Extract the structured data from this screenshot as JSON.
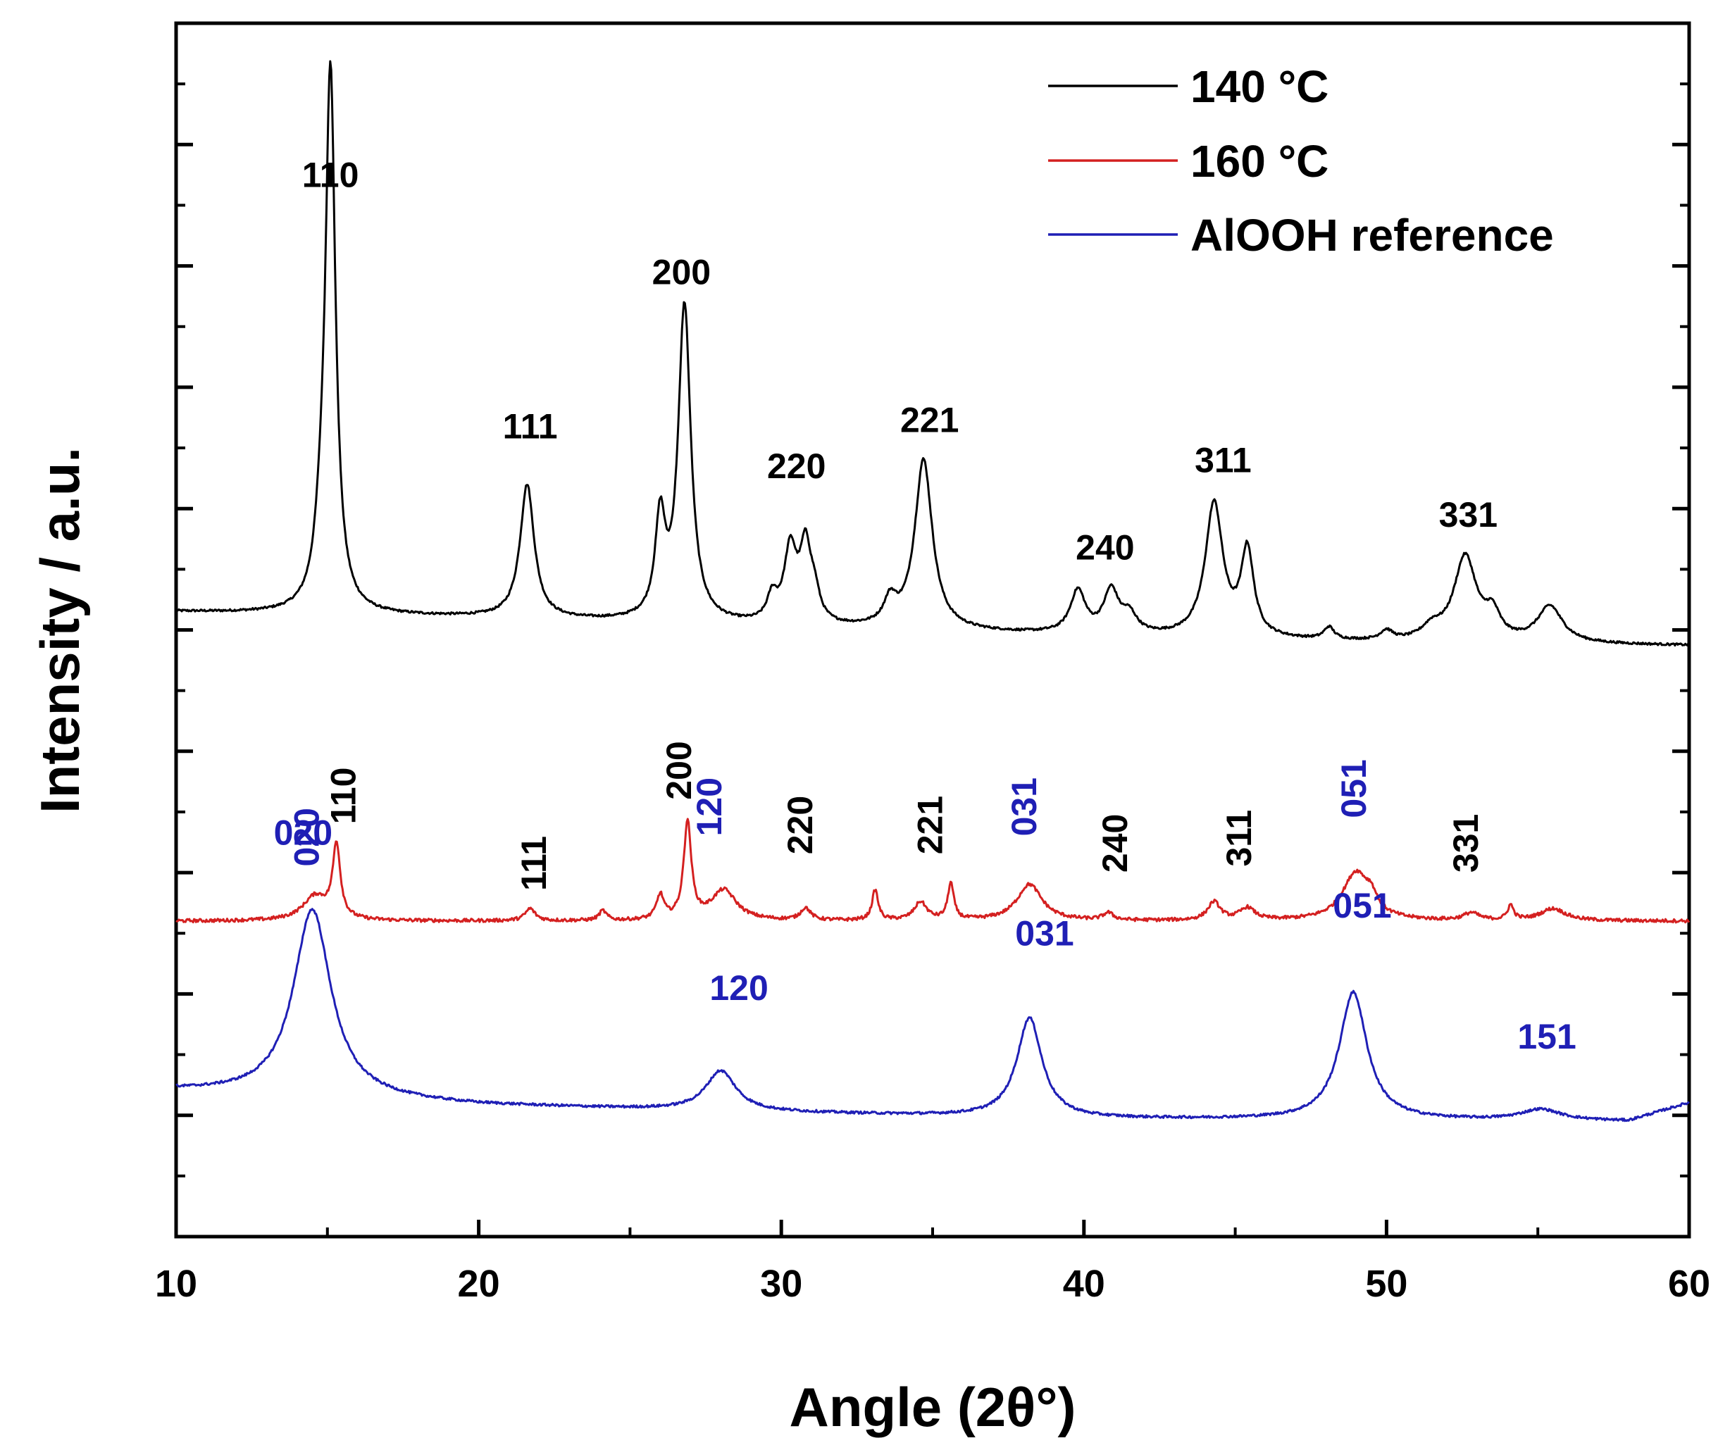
{
  "chart_data": {
    "type": "line",
    "title": "",
    "xlabel": "Angle (2θ°)",
    "ylabel": "Intensity / a.u.",
    "xlim": [
      10,
      60
    ],
    "ylim": [
      0,
      100
    ],
    "x_ticks": [
      10,
      20,
      30,
      40,
      50,
      60
    ],
    "y_ticks_labeled": false,
    "grid": false,
    "legend_position": "top-right",
    "series": [
      {
        "name": "140 °C",
        "color": "#000000",
        "baseline": [
          [
            10,
            51.5
          ],
          [
            20,
            51.0
          ],
          [
            30,
            50.2
          ],
          [
            40,
            49.5
          ],
          [
            50,
            48.9
          ],
          [
            60,
            48.7
          ]
        ],
        "peaks": [
          {
            "x": 14.8,
            "h": 4,
            "w": 0.25
          },
          {
            "x": 15.1,
            "h": 44,
            "w": 0.2
          },
          {
            "x": 21.6,
            "h": 11,
            "w": 0.28
          },
          {
            "x": 26.0,
            "h": 8,
            "w": 0.2
          },
          {
            "x": 26.8,
            "h": 26,
            "w": 0.25
          },
          {
            "x": 29.7,
            "h": 2,
            "w": 0.2
          },
          {
            "x": 30.3,
            "h": 6,
            "w": 0.25
          },
          {
            "x": 30.8,
            "h": 6,
            "w": 0.22
          },
          {
            "x": 31.1,
            "h": 2,
            "w": 0.2
          },
          {
            "x": 33.6,
            "h": 2,
            "w": 0.25
          },
          {
            "x": 34.7,
            "h": 14,
            "w": 0.35
          },
          {
            "x": 39.8,
            "h": 3.5,
            "w": 0.3
          },
          {
            "x": 40.9,
            "h": 3.5,
            "w": 0.3
          },
          {
            "x": 41.5,
            "h": 1.5,
            "w": 0.3
          },
          {
            "x": 44.3,
            "h": 11,
            "w": 0.35
          },
          {
            "x": 45.4,
            "h": 7,
            "w": 0.25
          },
          {
            "x": 48.1,
            "h": 1,
            "w": 0.2
          },
          {
            "x": 50.0,
            "h": 0.8,
            "w": 0.25
          },
          {
            "x": 51.5,
            "h": 1,
            "w": 0.4
          },
          {
            "x": 52.6,
            "h": 7,
            "w": 0.45
          },
          {
            "x": 53.5,
            "h": 2,
            "w": 0.3
          },
          {
            "x": 55.4,
            "h": 3,
            "w": 0.5
          }
        ]
      },
      {
        "name": "160 °C",
        "color": "#d42020",
        "baseline": [
          [
            10,
            26.0
          ],
          [
            60,
            26.0
          ]
        ],
        "peaks": [
          {
            "x": 14.6,
            "h": 2,
            "w": 0.5
          },
          {
            "x": 15.3,
            "h": 6,
            "w": 0.15
          },
          {
            "x": 21.7,
            "h": 1,
            "w": 0.2
          },
          {
            "x": 24.1,
            "h": 0.8,
            "w": 0.15
          },
          {
            "x": 26.0,
            "h": 2,
            "w": 0.15
          },
          {
            "x": 26.9,
            "h": 8,
            "w": 0.15
          },
          {
            "x": 28.1,
            "h": 2.5,
            "w": 0.5
          },
          {
            "x": 30.8,
            "h": 1,
            "w": 0.2
          },
          {
            "x": 33.1,
            "h": 2.5,
            "w": 0.12
          },
          {
            "x": 34.6,
            "h": 1.5,
            "w": 0.25
          },
          {
            "x": 35.6,
            "h": 3,
            "w": 0.12
          },
          {
            "x": 38.2,
            "h": 3,
            "w": 0.5
          },
          {
            "x": 40.8,
            "h": 0.6,
            "w": 0.2
          },
          {
            "x": 44.3,
            "h": 1.5,
            "w": 0.25
          },
          {
            "x": 45.4,
            "h": 1,
            "w": 0.3
          },
          {
            "x": 49.0,
            "h": 4,
            "w": 0.55
          },
          {
            "x": 49.5,
            "h": 1,
            "w": 0.2
          },
          {
            "x": 52.8,
            "h": 0.6,
            "w": 0.3
          },
          {
            "x": 54.1,
            "h": 1.2,
            "w": 0.12
          },
          {
            "x": 55.5,
            "h": 1,
            "w": 0.5
          }
        ]
      },
      {
        "name": "AlOOH reference",
        "color": "#1f1fb5",
        "baseline": [
          [
            10,
            12.0
          ],
          [
            20,
            10.8
          ],
          [
            30,
            10.2
          ],
          [
            40,
            9.7
          ],
          [
            50,
            9.6
          ],
          [
            58,
            9.5
          ],
          [
            60,
            11.0
          ]
        ],
        "peaks": [
          {
            "x": 14.5,
            "h": 15.5,
            "w": 0.75
          },
          {
            "x": 28.0,
            "h": 3.3,
            "w": 0.6
          },
          {
            "x": 38.2,
            "h": 8.2,
            "w": 0.5
          },
          {
            "x": 48.9,
            "h": 10.5,
            "w": 0.55
          },
          {
            "x": 55.1,
            "h": 0.9,
            "w": 0.8
          }
        ]
      }
    ],
    "annotations": [
      {
        "text": "110",
        "x": 15.1,
        "y": 86.5,
        "rotate": 0,
        "color": "#000000"
      },
      {
        "text": "111",
        "x": 21.7,
        "y": 65.8,
        "rotate": 0,
        "color": "#000000"
      },
      {
        "text": "200",
        "x": 26.7,
        "y": 78.5,
        "rotate": 0,
        "color": "#000000"
      },
      {
        "text": "220",
        "x": 30.5,
        "y": 62.5,
        "rotate": 0,
        "color": "#000000"
      },
      {
        "text": "221",
        "x": 34.9,
        "y": 66.3,
        "rotate": 0,
        "color": "#000000"
      },
      {
        "text": "240",
        "x": 40.7,
        "y": 55.8,
        "rotate": 0,
        "color": "#000000"
      },
      {
        "text": "311",
        "x": 44.6,
        "y": 63.0,
        "rotate": 0,
        "color": "#000000"
      },
      {
        "text": "331",
        "x": 52.7,
        "y": 58.5,
        "rotate": 0,
        "color": "#000000"
      },
      {
        "text": "020",
        "x": 14.3,
        "y": 30.5,
        "rotate": -90,
        "color": "#1f1fb5"
      },
      {
        "text": "110",
        "x": 15.5,
        "y": 34.0,
        "rotate": -90,
        "color": "#000000"
      },
      {
        "text": "111",
        "x": 21.8,
        "y": 28.5,
        "rotate": -90,
        "color": "#000000"
      },
      {
        "text": "200",
        "x": 26.6,
        "y": 36.0,
        "rotate": -90,
        "color": "#000000"
      },
      {
        "text": "120",
        "x": 27.6,
        "y": 33.0,
        "rotate": -90,
        "color": "#1f1fb5"
      },
      {
        "text": "220",
        "x": 30.6,
        "y": 31.5,
        "rotate": -90,
        "color": "#000000"
      },
      {
        "text": "221",
        "x": 34.9,
        "y": 31.5,
        "rotate": -90,
        "color": "#000000"
      },
      {
        "text": "031",
        "x": 38.0,
        "y": 33.0,
        "rotate": -90,
        "color": "#1f1fb5"
      },
      {
        "text": "240",
        "x": 41.0,
        "y": 30.0,
        "rotate": -90,
        "color": "#000000"
      },
      {
        "text": "311",
        "x": 45.1,
        "y": 30.5,
        "rotate": -90,
        "color": "#000000"
      },
      {
        "text": "051",
        "x": 48.9,
        "y": 34.5,
        "rotate": -90,
        "color": "#1f1fb5"
      },
      {
        "text": "331",
        "x": 52.6,
        "y": 30.0,
        "rotate": -90,
        "color": "#000000"
      },
      {
        "text": "020",
        "x": 14.2,
        "y": 32.3,
        "rotate": 0,
        "color": "#1f1fb5"
      },
      {
        "text": "120",
        "x": 28.6,
        "y": 19.5,
        "rotate": 0,
        "color": "#1f1fb5"
      },
      {
        "text": "031",
        "x": 38.7,
        "y": 24.0,
        "rotate": 0,
        "color": "#1f1fb5"
      },
      {
        "text": "051",
        "x": 49.2,
        "y": 26.3,
        "rotate": 0,
        "color": "#1f1fb5"
      },
      {
        "text": "151",
        "x": 55.3,
        "y": 15.5,
        "rotate": 0,
        "color": "#1f1fb5"
      }
    ]
  }
}
